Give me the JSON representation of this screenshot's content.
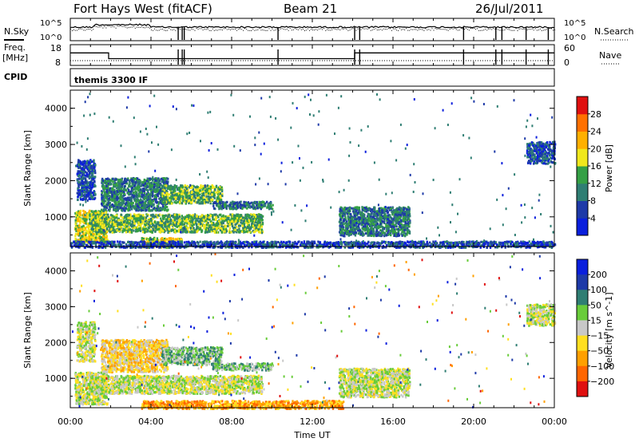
{
  "header": {
    "station": "Fort Hays West (fitACF)",
    "beam": "Beam 21",
    "date": "26/Jul/2011"
  },
  "side_labels": {
    "nsky": "N.Sky",
    "nsearch": "N.Search",
    "freq": "Freq.",
    "freq_unit": "[MHz]",
    "nave": "Nave",
    "cpid": "CPID",
    "cpid_value": "themis 3300 IF"
  },
  "chart_data": [
    {
      "type": "line",
      "name": "noise",
      "ylim_labels": [
        "10^0",
        "10^5"
      ],
      "left_ticks": [
        "10^5",
        "10^0"
      ],
      "right_ticks": [
        "10^5",
        "10^0"
      ],
      "x": [
        0,
        24
      ]
    },
    {
      "type": "line",
      "name": "frequency",
      "left_ticks": [
        "18",
        "8"
      ],
      "right_ticks": [
        "60",
        "0"
      ],
      "freq_segments": [
        {
          "t0": 0.0,
          "t1": 1.9,
          "value": 14.5
        },
        {
          "t0": 1.9,
          "t1": 14.1,
          "value": 10.5
        },
        {
          "t0": 14.1,
          "t1": 24.0,
          "value": 14.5
        }
      ],
      "gap_times": [
        5.35,
        5.55,
        5.65,
        10.3,
        14.1,
        14.35,
        19.5,
        21.1,
        21.4,
        22.6,
        23.7
      ]
    },
    {
      "type": "heatmap",
      "name": "power",
      "xlabel": "",
      "ylabel": "Slant Range [km]",
      "ylim": [
        180,
        4500
      ],
      "yticks": [
        "1000",
        "2000",
        "3000",
        "4000"
      ],
      "colorbar_label": "Power [dB]",
      "colorbar_ticks": [
        "4",
        "8",
        "12",
        "16",
        "20",
        "24",
        "28"
      ],
      "colorbar_colors": [
        "#0a1fdd",
        "#1e3aa8",
        "#2f7e73",
        "#35a045",
        "#f0e81c",
        "#ffb000",
        "#ff7000",
        "#e01010"
      ],
      "scatter_regions": [
        {
          "t0": 0.2,
          "t1": 1.8,
          "r0": 300,
          "r1": 1200,
          "level": 4
        },
        {
          "t0": 0.3,
          "t1": 1.2,
          "r0": 1500,
          "r1": 2600,
          "level": 1
        },
        {
          "t0": 1.5,
          "t1": 4.8,
          "r0": 1200,
          "r1": 2100,
          "level": 2
        },
        {
          "t0": 4.5,
          "t1": 7.5,
          "r0": 1400,
          "r1": 1900,
          "level": 3
        },
        {
          "t0": 1.0,
          "t1": 9.5,
          "r0": 600,
          "r1": 1100,
          "level": 3
        },
        {
          "t0": 7.0,
          "t1": 10.0,
          "r0": 1250,
          "r1": 1450,
          "level": 2
        },
        {
          "t0": 3.5,
          "t1": 5.5,
          "r0": 180,
          "r1": 450,
          "level": 4
        },
        {
          "t0": 13.3,
          "t1": 16.8,
          "r0": 500,
          "r1": 1300,
          "level": 2
        },
        {
          "t0": 22.6,
          "t1": 24.0,
          "r0": 2500,
          "r1": 3100,
          "level": 1
        },
        {
          "t0": 0.0,
          "t1": 24.0,
          "r0": 180,
          "r1": 350,
          "level": 1
        }
      ]
    },
    {
      "type": "heatmap",
      "name": "velocity",
      "xlabel": "Time UT",
      "ylabel": "Slant Range [km]",
      "ylim": [
        180,
        4500
      ],
      "yticks": [
        "1000",
        "2000",
        "3000",
        "4000"
      ],
      "xticks": [
        "00:00",
        "04:00",
        "08:00",
        "12:00",
        "16:00",
        "20:00",
        "00:00"
      ],
      "colorbar_label": "Velocity [m s^-1]",
      "colorbar_ticks": [
        "200",
        "100",
        "50",
        "15",
        "-15",
        "-50",
        "-100",
        "-200"
      ],
      "colorbar_colors": [
        "#0a1fdd",
        "#1e3aa8",
        "#2f7e73",
        "#69cc3a",
        "#c8c8c8",
        "#ffdf20",
        "#ffa000",
        "#ff6600",
        "#e01010"
      ],
      "scatter_regions": [
        {
          "t0": 0.2,
          "t1": 1.8,
          "r0": 300,
          "r1": 1200,
          "level": 4
        },
        {
          "t0": 0.3,
          "t1": 1.2,
          "r0": 1500,
          "r1": 2600,
          "level": 4
        },
        {
          "t0": 1.5,
          "t1": 4.8,
          "r0": 1200,
          "r1": 2100,
          "level": 5
        },
        {
          "t0": 4.5,
          "t1": 7.5,
          "r0": 1400,
          "r1": 1900,
          "level": 3
        },
        {
          "t0": 1.0,
          "t1": 9.5,
          "r0": 600,
          "r1": 1100,
          "level": 4
        },
        {
          "t0": 7.0,
          "t1": 10.0,
          "r0": 1250,
          "r1": 1450,
          "level": 3
        },
        {
          "t0": 3.5,
          "t1": 13.5,
          "r0": 180,
          "r1": 400,
          "level": 6
        },
        {
          "t0": 13.3,
          "t1": 16.8,
          "r0": 500,
          "r1": 1300,
          "level": 4
        },
        {
          "t0": 22.6,
          "t1": 24.0,
          "r0": 2500,
          "r1": 3100,
          "level": 4
        }
      ]
    }
  ]
}
